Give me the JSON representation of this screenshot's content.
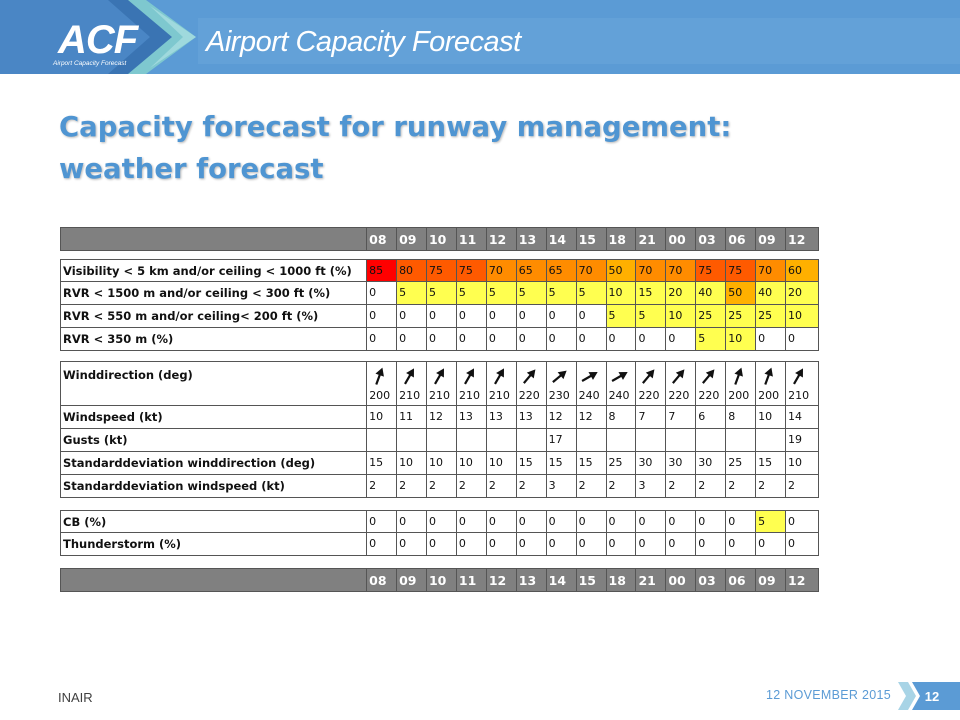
{
  "header": {
    "logo_text": "ACF",
    "logo_subtitle": "Airport Capacity Forecast",
    "title": "Airport Capacity Forecast",
    "banner_color": "#5b9bd5"
  },
  "slide": {
    "title_line1": "Capacity forecast for runway management:",
    "title_line2": "weather forecast"
  },
  "table": {
    "hours": [
      "08",
      "09",
      "10",
      "11",
      "12",
      "13",
      "14",
      "15",
      "18",
      "21",
      "00",
      "03",
      "06",
      "09",
      "12"
    ],
    "group1": [
      {
        "label": "Visibility < 5 km and/or ceiling < 1000 ft (%)",
        "values": [
          "85",
          "80",
          "75",
          "75",
          "70",
          "65",
          "65",
          "70",
          "50",
          "70",
          "70",
          "75",
          "75",
          "70",
          "60"
        ]
      },
      {
        "label": "RVR < 1500 m and/or ceiling < 300 ft (%)",
        "values": [
          "0",
          "5",
          "5",
          "5",
          "5",
          "5",
          "5",
          "5",
          "10",
          "15",
          "20",
          "40",
          "50",
          "40",
          "20"
        ]
      },
      {
        "label": "RVR < 550 m and/or ceiling< 200 ft (%)",
        "values": [
          "0",
          "0",
          "0",
          "0",
          "0",
          "0",
          "0",
          "0",
          "5",
          "5",
          "10",
          "25",
          "25",
          "25",
          "10"
        ]
      },
      {
        "label": "RVR < 350 m (%)",
        "values": [
          "0",
          "0",
          "0",
          "0",
          "0",
          "0",
          "0",
          "0",
          "0",
          "0",
          "0",
          "5",
          "10",
          "0",
          "0"
        ]
      }
    ],
    "wind_direction": {
      "label": "Winddirection (deg)",
      "values": [
        "200",
        "210",
        "210",
        "210",
        "210",
        "220",
        "230",
        "240",
        "240",
        "220",
        "220",
        "220",
        "200",
        "200",
        "210"
      ],
      "icon": "wind-arrow-icon"
    },
    "group2": [
      {
        "label": "Windspeed (kt)",
        "values": [
          "10",
          "11",
          "12",
          "13",
          "13",
          "13",
          "12",
          "12",
          "8",
          "7",
          "7",
          "6",
          "8",
          "10",
          "14"
        ]
      },
      {
        "label": "Gusts (kt)",
        "values": [
          "",
          "",
          "",
          "",
          "",
          "",
          "17",
          "",
          "",
          "",
          "",
          "",
          "",
          "",
          "19"
        ]
      },
      {
        "label": "Standarddeviation winddirection (deg)",
        "values": [
          "15",
          "10",
          "10",
          "10",
          "10",
          "15",
          "15",
          "15",
          "25",
          "30",
          "30",
          "30",
          "25",
          "15",
          "10"
        ]
      },
      {
        "label": "Standarddeviation windspeed (kt)",
        "values": [
          "2",
          "2",
          "2",
          "2",
          "2",
          "2",
          "3",
          "2",
          "2",
          "3",
          "2",
          "2",
          "2",
          "2",
          "2"
        ]
      }
    ],
    "group3": [
      {
        "label": "CB (%)",
        "values": [
          "0",
          "0",
          "0",
          "0",
          "0",
          "0",
          "0",
          "0",
          "0",
          "0",
          "0",
          "0",
          "0",
          "5",
          "0"
        ]
      },
      {
        "label": "Thunderstorm (%)",
        "values": [
          "0",
          "0",
          "0",
          "0",
          "0",
          "0",
          "0",
          "0",
          "0",
          "0",
          "0",
          "0",
          "0",
          "0",
          "0"
        ]
      }
    ],
    "colors": {
      "header_bg": "#808080",
      "red": "#ff0000",
      "orange_red": "#ff5a00",
      "orange": "#ff8c00",
      "amber": "#ffb000",
      "yellow": "#ffff50"
    }
  },
  "footer": {
    "org": "INAIR",
    "date": "12 NOVEMBER 2015",
    "page": "12"
  }
}
